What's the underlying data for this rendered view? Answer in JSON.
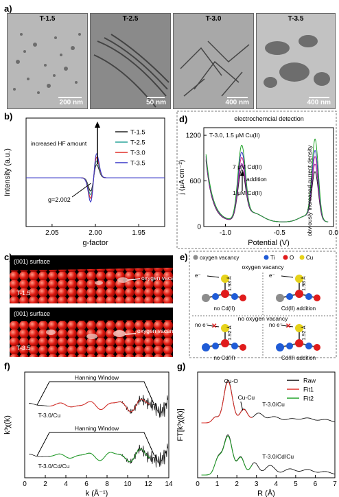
{
  "panel_a": {
    "label": "a)",
    "images": [
      {
        "title": "T-1.5",
        "scale": "200 nm"
      },
      {
        "title": "T-2.5",
        "scale": "50 nm"
      },
      {
        "title": "T-3.0",
        "scale": "400 nm"
      },
      {
        "title": "T-3.5",
        "scale": "400 nm"
      }
    ]
  },
  "panel_c": {
    "label": "c)",
    "top": {
      "surface": "(001) surface",
      "sample": "T-1.5",
      "arrow_label": "oxygen vacancy"
    },
    "bottom": {
      "surface": "(001) surface",
      "sample": "T-3.5",
      "arrow_label": "oxygen vacancy"
    }
  },
  "panel_e": {
    "label": "e)",
    "legend": {
      "vacancy": "oxygen vacancy",
      "ti": "Ti",
      "o": "O",
      "cu": "Cu"
    },
    "top_header": "oxygen vacancy",
    "bottom_header": "no oxygen vacancy",
    "cells": [
      {
        "e": "e⁻",
        "dist": "1.93 Å",
        "caption": "no Cd(II)"
      },
      {
        "e": "e⁻",
        "dist": "1.98 Å",
        "caption": "Cd(II) addition"
      },
      {
        "e": "no e⁻",
        "dist": "1.92 Å",
        "caption": "no Cd(II)"
      },
      {
        "e": "no e⁻",
        "dist": "1.92 Å",
        "caption": "Cd(II) addition"
      }
    ],
    "colors": {
      "ti": "#1f5bd6",
      "o": "#e01b1b",
      "cu": "#e6d21a",
      "vacancy": "#8c8c8c"
    }
  },
  "chart_data": [
    {
      "panel": "b)",
      "type": "line",
      "xlabel": "g-factor",
      "ylabel": "Intensity (a.u.)",
      "xlim": [
        2.08,
        1.92
      ],
      "xticks": [
        "2.05",
        "2.00",
        "1.95"
      ],
      "annotations": [
        "increased HF amount",
        "g=2.002"
      ],
      "series": [
        {
          "name": "T-1.5",
          "color": "#222222",
          "amp": 0.55
        },
        {
          "name": "T-2.5",
          "color": "#2aa39a",
          "amp": 0.7
        },
        {
          "name": "T-3.0",
          "color": "#e0302a",
          "amp": 0.85
        },
        {
          "name": "T-3.5",
          "color": "#3a38c8",
          "amp": 1.0
        }
      ]
    },
    {
      "panel": "d)",
      "type": "line",
      "title": "electrochemcial detection",
      "xlabel": "Potential (V)",
      "ylabel": "j (μA cm⁻²)",
      "xlim": [
        -1.2,
        0.0
      ],
      "ylim": [
        0,
        1300
      ],
      "xticks": [
        "-1.0",
        "-0.5",
        "0.0"
      ],
      "yticks": [
        "0",
        "600",
        "1200"
      ],
      "annotations": [
        "T-3.0, 1.5 μM Cu(II)",
        "7 μM Cd(II)",
        "addition",
        "1 μM Cd(II)",
        "obviously increased current density"
      ],
      "series": [
        {
          "color": "#1a1a1a",
          "peak1": 620,
          "peak2": 620
        },
        {
          "color": "#8a1fa0",
          "peak1": 700,
          "peak2": 720
        },
        {
          "color": "#d02a8a",
          "peak1": 780,
          "peak2": 820
        },
        {
          "color": "#3c3cc8",
          "peak1": 850,
          "peak2": 900
        },
        {
          "color": "#22a32a",
          "peak1": 940,
          "peak2": 1050
        }
      ]
    },
    {
      "panel": "f)",
      "type": "line",
      "xlabel": "k (Å⁻¹)",
      "ylabel": "k³χ(k)",
      "xlim": [
        0,
        14
      ],
      "xticks": [
        "0",
        "2",
        "4",
        "6",
        "8",
        "10",
        "12",
        "14"
      ],
      "window_label": "Hanning Window",
      "series": [
        {
          "name": "T-3.0/Cu",
          "color": "#111111",
          "fit_color": "#e0302a"
        },
        {
          "name": "T-3.0/Cd/Cu",
          "color": "#111111",
          "fit_color": "#22a32a"
        }
      ]
    },
    {
      "panel": "g)",
      "type": "line",
      "xlabel": "R (Å)",
      "ylabel": "FT[k³χ(k)]",
      "xlim": [
        0,
        7
      ],
      "xticks": [
        "0",
        "1",
        "2",
        "3",
        "4",
        "5",
        "6",
        "7"
      ],
      "legend": [
        "Raw",
        "Fit1",
        "Fit2"
      ],
      "annotations": [
        "Cu-O",
        "Cu-Cu"
      ],
      "series": [
        {
          "name": "T-3.0/Cu",
          "color": "#111111",
          "fit_color": "#e0302a"
        },
        {
          "name": "T-3.0/Cd/Cu",
          "color": "#111111",
          "fit_color": "#22a32a"
        }
      ]
    }
  ]
}
